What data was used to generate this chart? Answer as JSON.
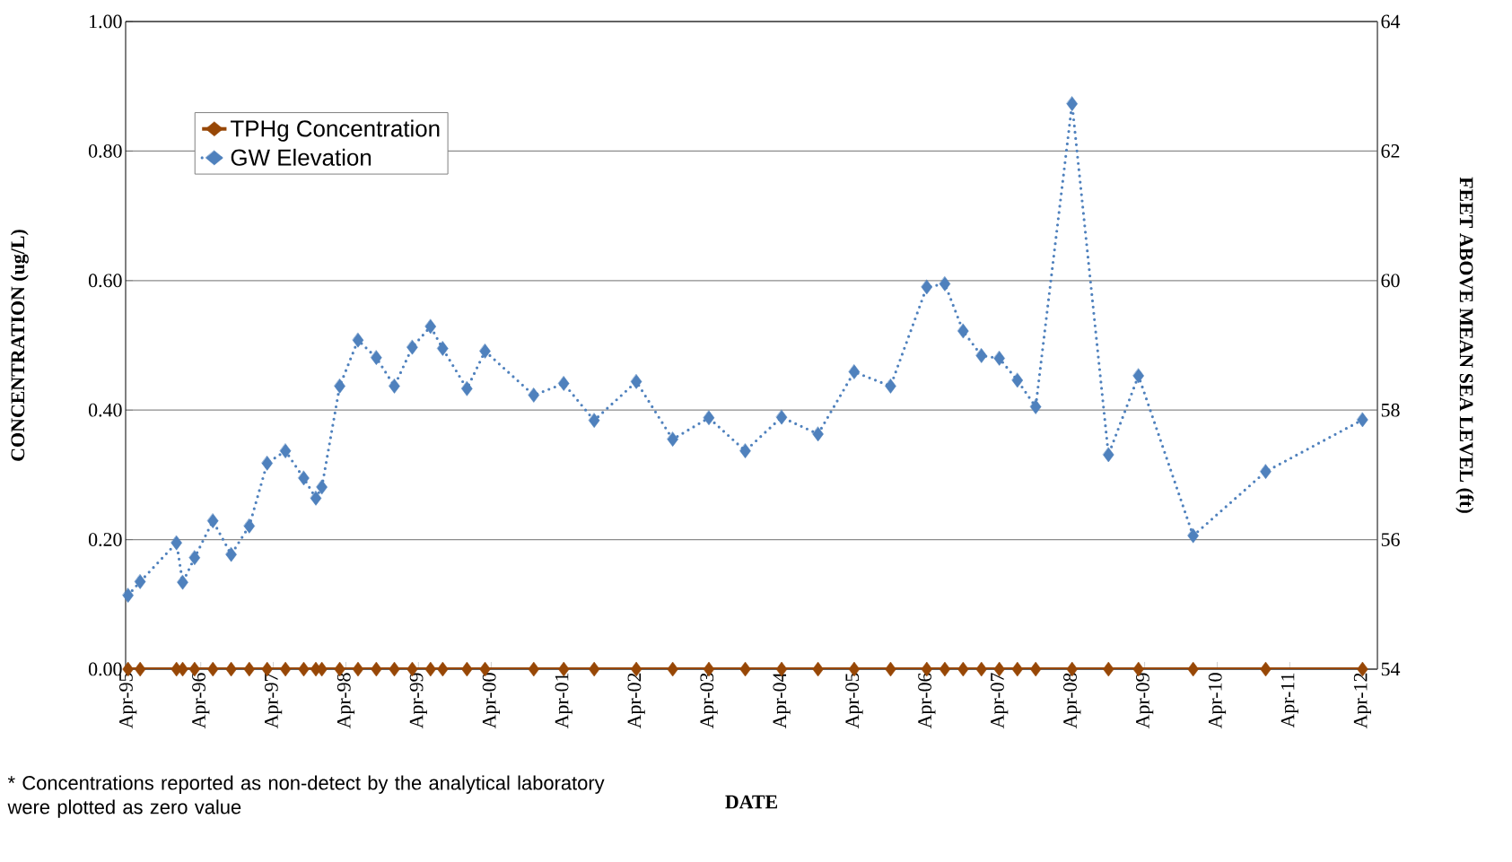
{
  "chart_data": {
    "type": "line",
    "xlabel": "DATE",
    "ylabel": "CONCENTRATION (ug/L)",
    "y2label": "FEET ABOVE MEAN SEA LEVEL (ft)",
    "annotations": [
      "* Concentrations reported as non-detect by the analytical laboratory were plotted as zero value"
    ],
    "x": [
      "1995-04",
      "1995-06",
      "1995-12",
      "1996-01",
      "1996-03",
      "1996-06",
      "1996-09",
      "1996-12",
      "1997-03",
      "1997-06",
      "1997-09",
      "1997-11",
      "1997-12",
      "1998-03",
      "1998-06",
      "1998-09",
      "1998-12",
      "1999-03",
      "1999-06",
      "1999-08",
      "1999-12",
      "2000-03",
      "2000-11",
      "2001-04",
      "2001-09",
      "2002-04",
      "2002-10",
      "2003-04",
      "2003-10",
      "2004-04",
      "2004-10",
      "2005-04",
      "2005-10",
      "2006-04",
      "2006-07",
      "2006-10",
      "2007-01",
      "2007-04",
      "2007-07",
      "2007-10",
      "2008-04",
      "2008-10",
      "2009-03",
      "2009-12",
      "2010-12",
      "2012-04"
    ],
    "series": [
      {
        "name": "TPHg Concentration",
        "color": "#974706",
        "axis": "y",
        "line_style": "solid",
        "values": [
          0,
          0,
          0,
          0,
          0,
          0,
          0,
          0,
          0,
          0,
          0,
          0,
          0,
          0,
          0,
          0,
          0,
          0,
          0,
          0,
          0,
          0,
          0,
          0,
          0,
          0,
          0,
          0,
          0,
          0,
          0,
          0,
          0,
          0,
          0,
          0,
          0,
          0,
          0,
          0,
          0,
          0,
          0,
          0,
          0,
          0
        ]
      },
      {
        "name": "GW Elevation",
        "color": "#4f81bd",
        "axis": "y2",
        "line_style": "dotted",
        "values": [
          55.14,
          55.35,
          55.95,
          55.34,
          55.72,
          56.29,
          55.77,
          56.21,
          57.18,
          57.37,
          56.95,
          56.64,
          56.81,
          58.37,
          59.08,
          58.81,
          58.37,
          58.97,
          59.29,
          58.95,
          58.33,
          58.91,
          58.23,
          58.41,
          57.84,
          58.44,
          57.55,
          57.88,
          57.37,
          57.89,
          57.63,
          58.59,
          58.37,
          59.9,
          59.95,
          59.22,
          58.84,
          58.8,
          58.46,
          58.05,
          62.73,
          57.31,
          58.53,
          56.06,
          57.05,
          57.85
        ]
      }
    ],
    "xlim": [
      "1995-03-20",
      "2012-06-15"
    ],
    "xticks": [
      {
        "value": "1995-04",
        "label": "Apr-95"
      },
      {
        "value": "1996-04",
        "label": "Apr-96"
      },
      {
        "value": "1997-04",
        "label": "Apr-97"
      },
      {
        "value": "1998-04",
        "label": "Apr-98"
      },
      {
        "value": "1999-04",
        "label": "Apr-99"
      },
      {
        "value": "2000-04",
        "label": "Apr-00"
      },
      {
        "value": "2001-04",
        "label": "Apr-01"
      },
      {
        "value": "2002-04",
        "label": "Apr-02"
      },
      {
        "value": "2003-04",
        "label": "Apr-03"
      },
      {
        "value": "2004-04",
        "label": "Apr-04"
      },
      {
        "value": "2005-04",
        "label": "Apr-05"
      },
      {
        "value": "2006-04",
        "label": "Apr-06"
      },
      {
        "value": "2007-04",
        "label": "Apr-07"
      },
      {
        "value": "2008-04",
        "label": "Apr-08"
      },
      {
        "value": "2009-04",
        "label": "Apr-09"
      },
      {
        "value": "2010-04",
        "label": "Apr-10"
      },
      {
        "value": "2011-04",
        "label": "Apr-11"
      },
      {
        "value": "2012-04",
        "label": "Apr-12"
      }
    ],
    "ylim": [
      0,
      1
    ],
    "yticks": [
      {
        "value": 0,
        "label": "0.00"
      },
      {
        "value": 0.2,
        "label": "0.20"
      },
      {
        "value": 0.4,
        "label": "0.40"
      },
      {
        "value": 0.6,
        "label": "0.60"
      },
      {
        "value": 0.8,
        "label": "0.80"
      },
      {
        "value": 1,
        "label": "1.00"
      }
    ],
    "y2lim": [
      54,
      64
    ],
    "y2ticks": [
      54,
      56,
      58,
      60,
      62,
      64
    ],
    "grid": "y",
    "legend": "top left",
    "marker": "diamond"
  }
}
